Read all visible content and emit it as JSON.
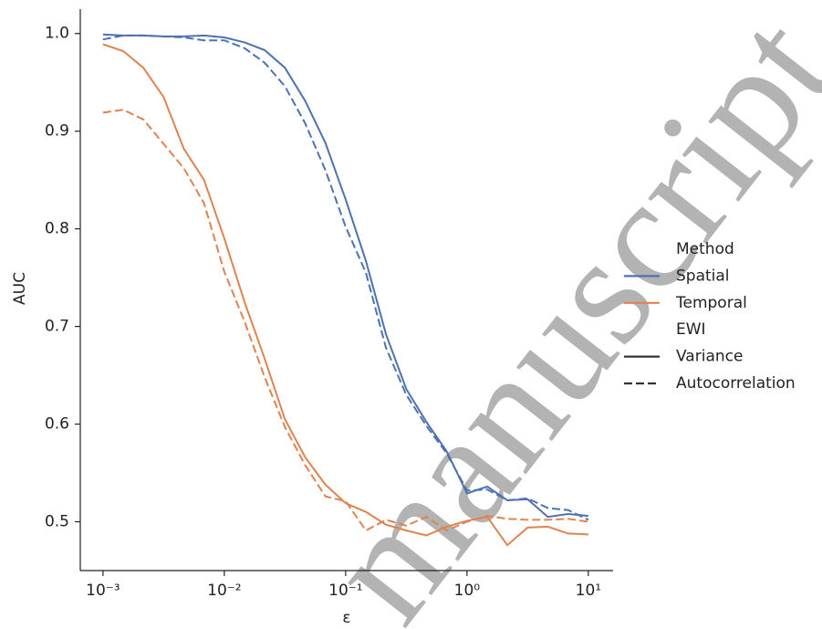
{
  "watermark": "manuscript",
  "chart_data": {
    "type": "line",
    "xlabel": "ε",
    "ylabel": "AUC",
    "xscale": "log",
    "xlim": [
      0.00065,
      16
    ],
    "ylim": [
      0.45,
      1.025
    ],
    "xticks": [
      {
        "value": 0.001,
        "label": "10⁻³"
      },
      {
        "value": 0.01,
        "label": "10⁻²"
      },
      {
        "value": 0.1,
        "label": "10⁻¹"
      },
      {
        "value": 1,
        "label": "10⁰"
      },
      {
        "value": 10,
        "label": "10¹"
      }
    ],
    "yticks": [
      0.5,
      0.6,
      0.7,
      0.8,
      0.9,
      {
        "value": 1,
        "label": "1.0"
      }
    ],
    "x": [
      0.001,
      0.00147,
      0.00215,
      0.00316,
      0.00464,
      0.00681,
      0.01,
      0.0147,
      0.0215,
      0.0316,
      0.0464,
      0.0681,
      0.1,
      0.147,
      0.215,
      0.316,
      0.464,
      0.681,
      1,
      1.47,
      2.15,
      3.16,
      4.64,
      6.81,
      10
    ],
    "series": [
      {
        "color": "#4c72b0",
        "dash": "solid",
        "values": [
          0.999,
          0.998,
          0.998,
          0.997,
          0.997,
          0.998,
          0.996,
          0.991,
          0.983,
          0.965,
          0.931,
          0.888,
          0.83,
          0.767,
          0.692,
          0.636,
          0.602,
          0.572,
          0.529,
          0.536,
          0.522,
          0.523,
          0.505,
          0.508,
          0.506
        ]
      },
      {
        "color": "#4c72b0",
        "dash": "dashed",
        "values": [
          0.994,
          0.998,
          0.998,
          0.997,
          0.996,
          0.993,
          0.993,
          0.985,
          0.97,
          0.946,
          0.908,
          0.86,
          0.802,
          0.755,
          0.678,
          0.63,
          0.598,
          0.57,
          0.532,
          0.533,
          0.522,
          0.524,
          0.514,
          0.512,
          0.502
        ]
      },
      {
        "color": "#dd8452",
        "dash": "solid",
        "values": [
          0.989,
          0.982,
          0.965,
          0.935,
          0.882,
          0.85,
          0.79,
          0.725,
          0.667,
          0.605,
          0.566,
          0.538,
          0.519,
          0.51,
          0.497,
          0.491,
          0.486,
          0.495,
          0.501,
          0.505,
          0.476,
          0.494,
          0.495,
          0.488,
          0.487
        ]
      },
      {
        "color": "#dd8452",
        "dash": "dashed",
        "values": [
          0.919,
          0.922,
          0.912,
          0.887,
          0.862,
          0.826,
          0.756,
          0.705,
          0.648,
          0.597,
          0.558,
          0.526,
          0.521,
          0.491,
          0.502,
          0.496,
          0.505,
          0.491,
          0.5,
          0.506,
          0.503,
          0.502,
          0.502,
          0.503,
          0.5
        ]
      }
    ],
    "legend": [
      {
        "title": "Method",
        "entries": [
          {
            "label": "Spatial",
            "color": "#4c72b0",
            "dash": "solid"
          },
          {
            "label": "Temporal",
            "color": "#dd8452",
            "dash": "solid"
          }
        ]
      },
      {
        "title": "EWI",
        "entries": [
          {
            "label": "Variance",
            "color": "#333333",
            "dash": "solid"
          },
          {
            "label": "Autocorrelation",
            "color": "#333333",
            "dash": "dashed"
          }
        ]
      }
    ]
  }
}
